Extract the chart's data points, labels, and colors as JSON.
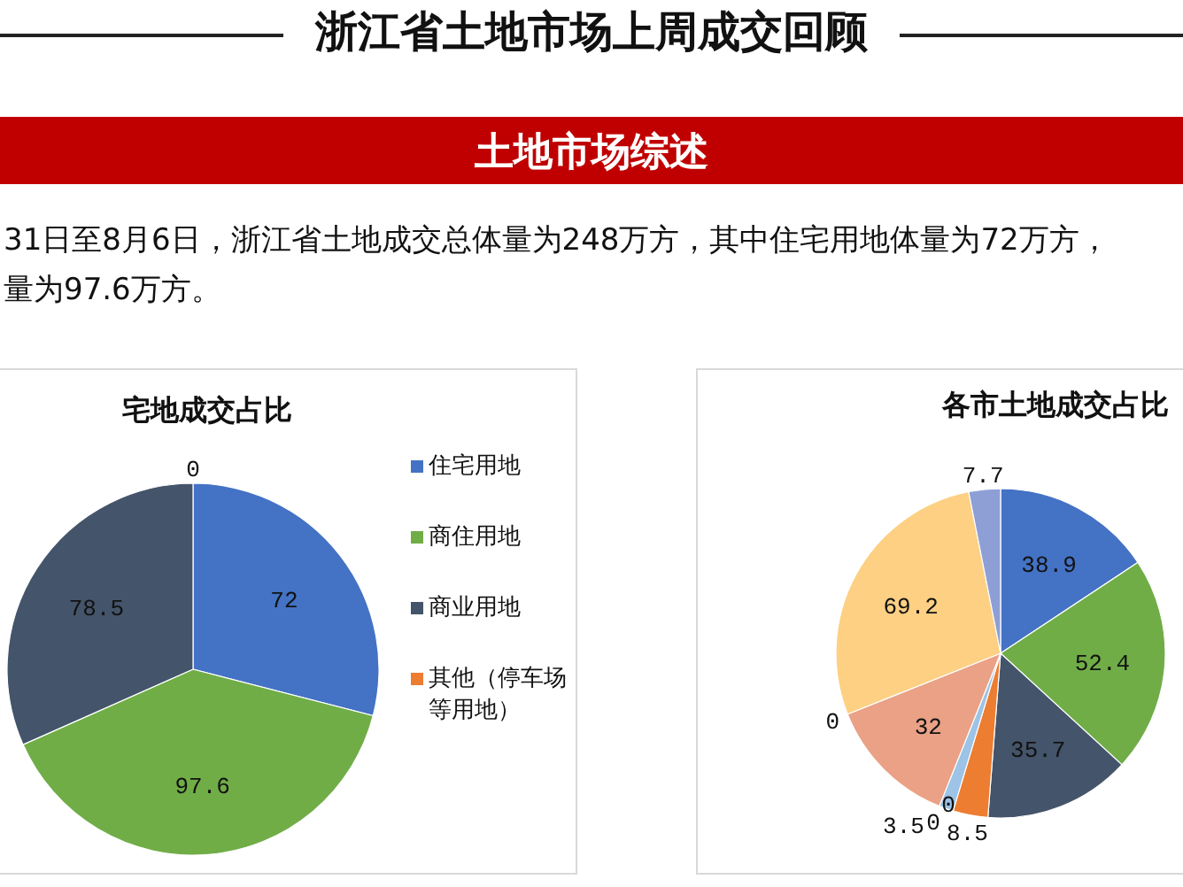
{
  "chart_data": [
    {
      "type": "other",
      "title": "浙江省土地市场上周成交回顾",
      "subtitle": "土地市场综述",
      "annotations": [
        "31日至8月6日，浙江省土地成交总体量为248万方，其中住宅用地体量为72万方，",
        "量为97.6万方。"
      ]
    },
    {
      "type": "pie",
      "title": "宅地成交占比",
      "categories": [
        "住宅用地",
        "商住用地",
        "商业用地",
        "其他（停车场等用地）"
      ],
      "values": [
        72,
        97.6,
        78.5,
        0
      ],
      "colors": [
        "#4472c4",
        "#70ad47",
        "#44546a",
        "#ed7d31"
      ],
      "value_labels": [
        "72",
        "97.6",
        "78.5",
        "0"
      ],
      "legend": "right"
    },
    {
      "type": "pie",
      "title": "各市土地成交占比",
      "categories": [
        null,
        null,
        null,
        null,
        null,
        null,
        null,
        null,
        null,
        null,
        null
      ],
      "values": [
        38.9,
        52.4,
        35.7,
        8.5,
        0,
        3.5,
        0,
        32,
        0,
        69.2,
        7.7
      ],
      "colors": [
        "#4472c4",
        "#70ad47",
        "#44546a",
        "#ed7d31",
        "#a5a5a5",
        "#9dc3e6",
        "#ffc000",
        "#eaa186",
        "#264478",
        "#fdd083",
        "#8e9fd6"
      ],
      "value_labels": [
        "38.9",
        "52.4",
        "35.7",
        "8.5",
        "0",
        "3.5",
        "0",
        "32",
        "0",
        "69.2",
        "7.7"
      ]
    }
  ]
}
